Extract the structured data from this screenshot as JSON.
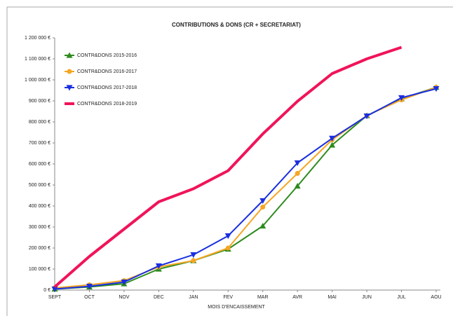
{
  "chart_data": {
    "type": "line",
    "title": "CONTRIBUTIONS & DONS (CR + SECRETARIAT)",
    "x_label": "MOIS D'ENCAISSEMENT",
    "categories": [
      "SEPT",
      "OCT",
      "NOV",
      "DEC",
      "JAN",
      "FEV",
      "MAR",
      "AVR",
      "MAI",
      "JUN",
      "JUL",
      "AOU"
    ],
    "series": [
      {
        "name": "CONTR&DONS 2015-2016",
        "color": "#2e8b1e",
        "marker": "triangle-up",
        "values": [
          5000,
          15000,
          30000,
          100000,
          140000,
          195000,
          305000,
          495000,
          690000,
          830000,
          910000,
          965000
        ]
      },
      {
        "name": "CONTR&DONS 2016-2017",
        "color": "#f5a623",
        "marker": "circle",
        "values": [
          10000,
          25000,
          45000,
          110000,
          140000,
          200000,
          395000,
          555000,
          715000,
          830000,
          905000,
          965000
        ]
      },
      {
        "name": "CONTR&DONS 2017-2018",
        "color": "#1a2fe0",
        "marker": "triangle-down",
        "values": [
          5000,
          18000,
          38000,
          115000,
          168000,
          258000,
          425000,
          605000,
          722000,
          828000,
          915000,
          958000
        ]
      },
      {
        "name": "CONTR&DONS 2018-2019",
        "color": "#f0145a",
        "marker": "none",
        "values": [
          15000,
          160000,
          290000,
          420000,
          482000,
          568000,
          743000,
          898000,
          1030000,
          1100000,
          1155000,
          null
        ]
      }
    ],
    "ylim": [
      0,
      1200000
    ],
    "yticks": [
      {
        "value": 0,
        "label": "0 €"
      },
      {
        "value": 100000,
        "label": "100 000 €"
      },
      {
        "value": 200000,
        "label": "200 000 €"
      },
      {
        "value": 300000,
        "label": "300 000 €"
      },
      {
        "value": 400000,
        "label": "400 000 €"
      },
      {
        "value": 500000,
        "label": "500 000 €"
      },
      {
        "value": 600000,
        "label": "600 000 €"
      },
      {
        "value": 700000,
        "label": "700 000 €"
      },
      {
        "value": 800000,
        "label": "800 000 €"
      },
      {
        "value": 900000,
        "label": "900 000 €"
      },
      {
        "value": 1000000,
        "label": "1 000 000 €"
      },
      {
        "value": 1100000,
        "label": "1 100 000 €"
      },
      {
        "value": 1200000,
        "label": "1 200 000 €"
      }
    ],
    "grid": false,
    "legend": "upper left"
  }
}
